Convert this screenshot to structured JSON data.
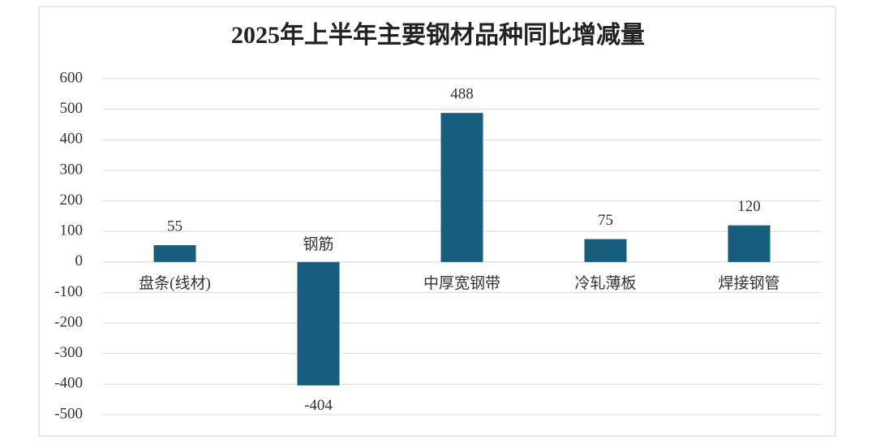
{
  "chart_data": {
    "type": "bar",
    "title": "2025年上半年主要钢材品种同比增减量",
    "categories": [
      "盘条(线材)",
      "钢筋",
      "中厚宽钢带",
      "冷轧薄板",
      "焊接钢管"
    ],
    "values": [
      55,
      -404,
      488,
      75,
      120
    ],
    "color": "#175e7c",
    "ylim": [
      -500,
      600
    ],
    "yticks": [
      -500,
      -400,
      -300,
      -200,
      -100,
      0,
      100,
      200,
      300,
      400,
      500,
      600
    ],
    "grid": true,
    "annotations": [
      "钢筋"
    ]
  }
}
